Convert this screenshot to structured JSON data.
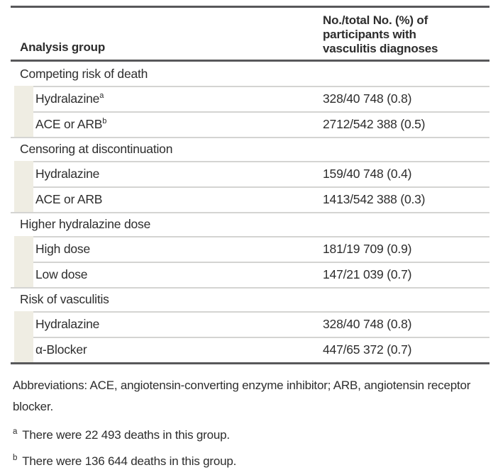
{
  "table": {
    "columns": {
      "col1": "Analysis group",
      "col2": "No./total No. (%) of participants with vasculitis diagnoses"
    },
    "sections": [
      {
        "title": "Competing risk of death",
        "rows": [
          {
            "label": "Hydralazine",
            "superscript": "a",
            "value": "328/40 748 (0.8)"
          },
          {
            "label": "ACE or ARB",
            "superscript": "b",
            "value": "2712/542 388 (0.5)"
          }
        ]
      },
      {
        "title": "Censoring at discontinuation",
        "rows": [
          {
            "label": "Hydralazine",
            "superscript": "",
            "value": "159/40 748 (0.4)"
          },
          {
            "label": "ACE or ARB",
            "superscript": "",
            "value": "1413/542 388 (0.3)"
          }
        ]
      },
      {
        "title": "Higher hydralazine dose",
        "rows": [
          {
            "label": "High dose",
            "superscript": "",
            "value": "181/19 709 (0.9)"
          },
          {
            "label": "Low dose",
            "superscript": "",
            "value": "147/21 039 (0.7)"
          }
        ]
      },
      {
        "title": "Risk of vasculitis",
        "rows": [
          {
            "label": "Hydralazine",
            "superscript": "",
            "value": "328/40 748 (0.8)"
          },
          {
            "label": "α-Blocker",
            "superscript": "",
            "value": "447/65 372 (0.7)"
          }
        ]
      }
    ]
  },
  "footnotes": {
    "abbreviations": "Abbreviations: ACE, angiotensin-converting enzyme inhibitor; ARB, angiotensin receptor blocker.",
    "notes": [
      {
        "marker": "a",
        "text": "There were 22 493 deaths in this group."
      },
      {
        "marker": "b",
        "text": "There were 136 644 deaths in this group."
      }
    ]
  },
  "colors": {
    "rule": "#58585a",
    "separator": "#d4d4d2",
    "indent_block": "#efede3",
    "text": "#2d2d2d"
  }
}
